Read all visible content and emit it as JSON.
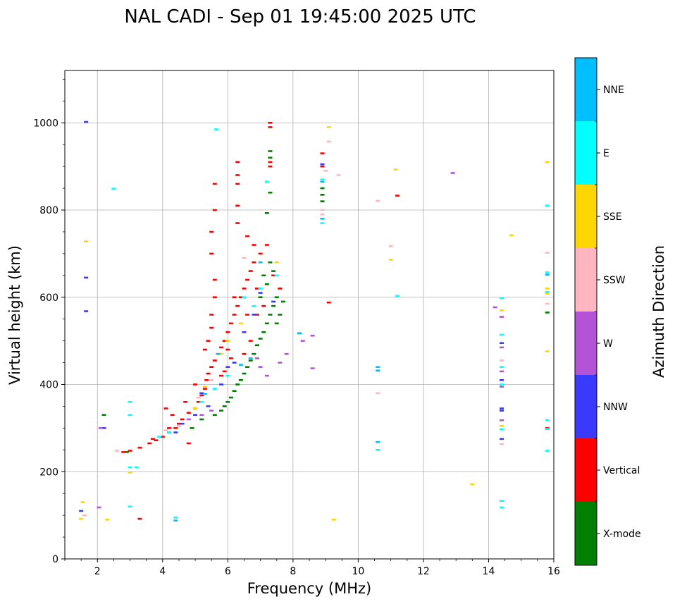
{
  "chart_data": {
    "type": "scatter",
    "title": "NAL CADI - Sep 01 19:45:00 2025 UTC",
    "xlabel": "Frequency (MHz)",
    "ylabel": "Virtual height (km)",
    "xlim": [
      1,
      16
    ],
    "ylim": [
      0,
      1120
    ],
    "xticks": [
      2,
      4,
      6,
      8,
      10,
      12,
      14,
      16
    ],
    "yticks": [
      0,
      200,
      400,
      600,
      800,
      1000
    ],
    "grid": true,
    "colorbar": {
      "label": "Azimuth Direction",
      "categories": [
        {
          "name": "X-mode",
          "color": "#008000"
        },
        {
          "name": "Vertical",
          "color": "#ff0000"
        },
        {
          "name": "NNW",
          "color": "#3a3aff"
        },
        {
          "name": "W",
          "color": "#b553d6"
        },
        {
          "name": "SSW",
          "color": "#ffb6c1"
        },
        {
          "name": "SSE",
          "color": "#ffd700"
        },
        {
          "name": "E",
          "color": "#00ffff"
        },
        {
          "name": "NNE",
          "color": "#00bfff"
        }
      ]
    },
    "series": [
      {
        "name": "X-mode",
        "color": "#008000",
        "points": [
          [
            5.6,
            330
          ],
          [
            5.8,
            340
          ],
          [
            5.9,
            350
          ],
          [
            6.0,
            360
          ],
          [
            6.1,
            370
          ],
          [
            6.2,
            385
          ],
          [
            6.3,
            400
          ],
          [
            6.4,
            410
          ],
          [
            6.5,
            425
          ],
          [
            6.6,
            440
          ],
          [
            6.7,
            455
          ],
          [
            6.8,
            470
          ],
          [
            6.9,
            490
          ],
          [
            7.0,
            505
          ],
          [
            7.1,
            520
          ],
          [
            7.2,
            540
          ],
          [
            7.3,
            560
          ],
          [
            7.4,
            580
          ],
          [
            7.5,
            600
          ],
          [
            7.6,
            560
          ],
          [
            7.0,
            600
          ],
          [
            7.2,
            630
          ],
          [
            7.4,
            660
          ],
          [
            7.3,
            680
          ],
          [
            7.1,
            650
          ],
          [
            6.9,
            620
          ],
          [
            7.5,
            540
          ],
          [
            7.7,
            590
          ],
          [
            7.6,
            620
          ],
          [
            7.3,
            920
          ],
          [
            7.3,
            935
          ],
          [
            7.3,
            840
          ],
          [
            7.2,
            793
          ],
          [
            8.9,
            820
          ],
          [
            8.9,
            835
          ],
          [
            8.9,
            850
          ],
          [
            2.2,
            330
          ],
          [
            2.9,
            245
          ],
          [
            15.8,
            565
          ],
          [
            4.9,
            300
          ],
          [
            5.2,
            320
          ]
        ]
      },
      {
        "name": "Vertical",
        "color": "#ff0000",
        "points": [
          [
            2.8,
            245
          ],
          [
            3.0,
            248
          ],
          [
            3.3,
            255
          ],
          [
            3.6,
            265
          ],
          [
            3.8,
            272
          ],
          [
            4.0,
            280
          ],
          [
            4.2,
            290
          ],
          [
            4.4,
            300
          ],
          [
            4.5,
            310
          ],
          [
            4.6,
            320
          ],
          [
            4.8,
            335
          ],
          [
            5.0,
            345
          ],
          [
            5.1,
            360
          ],
          [
            5.2,
            375
          ],
          [
            5.3,
            390
          ],
          [
            5.35,
            410
          ],
          [
            5.4,
            425
          ],
          [
            5.5,
            440
          ],
          [
            5.6,
            455
          ],
          [
            5.7,
            470
          ],
          [
            5.8,
            485
          ],
          [
            5.9,
            500
          ],
          [
            6.0,
            520
          ],
          [
            6.1,
            540
          ],
          [
            6.2,
            560
          ],
          [
            6.3,
            580
          ],
          [
            6.4,
            600
          ],
          [
            6.5,
            620
          ],
          [
            6.6,
            640
          ],
          [
            6.7,
            660
          ],
          [
            6.8,
            680
          ],
          [
            7.0,
            700
          ],
          [
            7.2,
            720
          ],
          [
            7.4,
            650
          ],
          [
            7.6,
            620
          ],
          [
            5.3,
            480
          ],
          [
            5.4,
            500
          ],
          [
            5.5,
            530
          ],
          [
            5.5,
            560
          ],
          [
            5.6,
            600
          ],
          [
            5.6,
            640
          ],
          [
            5.5,
            700
          ],
          [
            5.5,
            750
          ],
          [
            5.6,
            800
          ],
          [
            5.6,
            860
          ],
          [
            6.3,
            880
          ],
          [
            6.3,
            910
          ],
          [
            6.3,
            860
          ],
          [
            6.3,
            810
          ],
          [
            6.3,
            770
          ],
          [
            6.6,
            740
          ],
          [
            6.8,
            720
          ],
          [
            7.3,
            990
          ],
          [
            7.3,
            1000
          ],
          [
            7.3,
            910
          ],
          [
            7.3,
            900
          ],
          [
            6.7,
            500
          ],
          [
            6.9,
            560
          ],
          [
            6.5,
            470
          ],
          [
            6.1,
            460
          ],
          [
            5.9,
            430
          ],
          [
            4.3,
            330
          ],
          [
            4.1,
            345
          ],
          [
            4.2,
            300
          ],
          [
            4.8,
            265
          ],
          [
            3.7,
            275
          ],
          [
            3.3,
            92
          ],
          [
            9.1,
            588
          ],
          [
            11.2,
            833
          ],
          [
            15.8,
            300
          ],
          [
            8.9,
            930
          ],
          [
            8.9,
            900
          ],
          [
            5.0,
            400
          ],
          [
            4.7,
            360
          ],
          [
            5.8,
            420
          ],
          [
            6.0,
            480
          ],
          [
            6.2,
            600
          ],
          [
            6.6,
            560
          ],
          [
            6.9,
            620
          ],
          [
            7.1,
            580
          ]
        ]
      },
      {
        "name": "NNW",
        "color": "#3a3aff",
        "points": [
          [
            1.5,
            110
          ],
          [
            1.65,
            1002
          ],
          [
            1.65,
            645
          ],
          [
            1.65,
            568
          ],
          [
            2.2,
            300
          ],
          [
            4.4,
            290
          ],
          [
            4.6,
            310
          ],
          [
            5.0,
            330
          ],
          [
            5.4,
            350
          ],
          [
            5.8,
            400
          ],
          [
            6.2,
            450
          ],
          [
            6.5,
            520
          ],
          [
            6.8,
            560
          ],
          [
            7.0,
            610
          ],
          [
            7.4,
            590
          ],
          [
            14.4,
            345
          ],
          [
            14.4,
            410
          ],
          [
            14.4,
            275
          ],
          [
            14.4,
            495
          ],
          [
            14.4,
            340
          ],
          [
            15.8,
            298
          ],
          [
            8.9,
            905
          ],
          [
            5.2,
            380
          ],
          [
            6.0,
            440
          ]
        ]
      },
      {
        "name": "W",
        "color": "#b553d6",
        "points": [
          [
            2.05,
            118
          ],
          [
            2.1,
            300
          ],
          [
            8.3,
            500
          ],
          [
            8.6,
            512
          ],
          [
            8.6,
            437
          ],
          [
            12.9,
            885
          ],
          [
            14.2,
            577
          ],
          [
            14.4,
            555
          ],
          [
            14.4,
            485
          ],
          [
            14.4,
            430
          ],
          [
            14.4,
            395
          ],
          [
            14.4,
            318
          ],
          [
            7.6,
            450
          ],
          [
            7.8,
            470
          ],
          [
            7.2,
            420
          ],
          [
            7.0,
            440
          ],
          [
            6.9,
            460
          ],
          [
            5.5,
            340
          ],
          [
            5.2,
            330
          ],
          [
            4.8,
            320
          ]
        ]
      },
      {
        "name": "SSW",
        "color": "#ffb6c1",
        "points": [
          [
            1.6,
            100
          ],
          [
            2.6,
            248
          ],
          [
            9.1,
            957
          ],
          [
            9.4,
            880
          ],
          [
            9.0,
            890
          ],
          [
            10.6,
            821
          ],
          [
            11.0,
            717
          ],
          [
            10.6,
            380
          ],
          [
            15.8,
            702
          ],
          [
            15.8,
            585
          ],
          [
            15.8,
            610
          ],
          [
            14.4,
            455
          ],
          [
            14.4,
            263
          ],
          [
            4.1,
            295
          ],
          [
            4.5,
            305
          ],
          [
            5.1,
            370
          ],
          [
            5.5,
            410
          ],
          [
            6.5,
            690
          ],
          [
            8.9,
            790
          ],
          [
            8.9,
            800
          ]
        ]
      },
      {
        "name": "SSE",
        "color": "#ffd700",
        "points": [
          [
            1.5,
            92
          ],
          [
            1.55,
            130
          ],
          [
            1.65,
            728
          ],
          [
            2.3,
            90
          ],
          [
            3.0,
            198
          ],
          [
            9.1,
            990
          ],
          [
            11.15,
            893
          ],
          [
            11.0,
            686
          ],
          [
            13.5,
            171
          ],
          [
            9.25,
            90
          ],
          [
            14.7,
            742
          ],
          [
            14.4,
            570
          ],
          [
            14.4,
            305
          ],
          [
            15.8,
            910
          ],
          [
            15.8,
            476
          ],
          [
            15.8,
            608
          ],
          [
            15.8,
            620
          ],
          [
            5.0,
            345
          ],
          [
            5.3,
            395
          ],
          [
            5.8,
            470
          ],
          [
            6.0,
            500
          ],
          [
            6.4,
            540
          ],
          [
            7.5,
            680
          ]
        ]
      },
      {
        "name": "E",
        "color": "#00ffff",
        "points": [
          [
            2.5,
            849
          ],
          [
            3.0,
            120
          ],
          [
            3.0,
            210
          ],
          [
            3.0,
            330
          ],
          [
            3.0,
            360
          ],
          [
            3.2,
            210
          ],
          [
            4.4,
            95
          ],
          [
            5.65,
            985
          ],
          [
            7.2,
            865
          ],
          [
            8.2,
            518
          ],
          [
            10.6,
            250
          ],
          [
            11.2,
            603
          ],
          [
            14.4,
            598
          ],
          [
            14.4,
            514
          ],
          [
            14.4,
            440
          ],
          [
            14.4,
            400
          ],
          [
            14.4,
            297
          ],
          [
            14.4,
            133
          ],
          [
            14.4,
            118
          ],
          [
            15.8,
            810
          ],
          [
            15.8,
            657
          ],
          [
            15.8,
            318
          ],
          [
            15.8,
            248
          ],
          [
            15.8,
            298
          ],
          [
            15.8,
            612
          ],
          [
            5.2,
            360
          ],
          [
            5.6,
            390
          ],
          [
            6.0,
            420
          ],
          [
            6.5,
            600
          ],
          [
            6.8,
            580
          ],
          [
            7.0,
            620
          ],
          [
            7.5,
            650
          ],
          [
            4.2,
            290
          ],
          [
            3.9,
            280
          ],
          [
            8.9,
            770
          ],
          [
            8.9,
            870
          ]
        ]
      },
      {
        "name": "NNE",
        "color": "#00bfff",
        "points": [
          [
            10.6,
            440
          ],
          [
            10.6,
            432
          ],
          [
            10.6,
            268
          ],
          [
            8.9,
            865
          ],
          [
            8.9,
            780
          ],
          [
            15.8,
            652
          ],
          [
            4.4,
            88
          ],
          [
            5.3,
            378
          ],
          [
            6.4,
            445
          ],
          [
            6.7,
            460
          ],
          [
            7.0,
            680
          ],
          [
            5.7,
            470
          ],
          [
            8.2,
            517
          ]
        ]
      }
    ]
  }
}
